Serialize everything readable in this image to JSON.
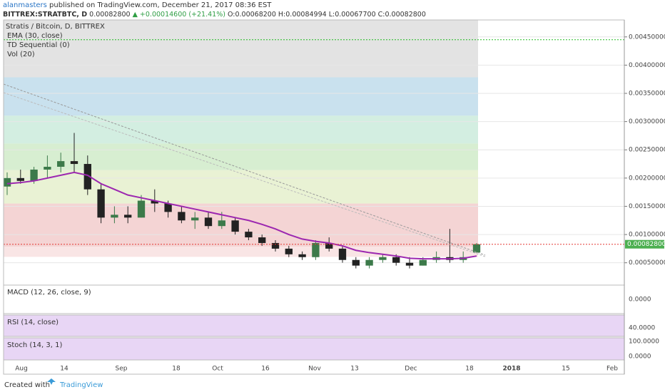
{
  "header": {
    "publisher": "alanmasters",
    "published": "published on TradingView.com, December 21, 2017 08:36 EST",
    "symbol": "BITTREX:STRATBTC, D",
    "price": "0.00082800",
    "change": "▲ +0.00014600 (+21.41%)",
    "ohlc": "O:0.00068200 H:0.00084994 L:0.00067700 C:0.00082800"
  },
  "legend": [
    "Stratis / Bitcoin, D, BITTREX",
    "EMA (30, close)",
    "TD Sequential (0)",
    "Vol (20)"
  ],
  "chart_data": {
    "type": "candlestick",
    "categories": [
      "Aug",
      "14",
      "Sep",
      "18",
      "Oct",
      "16",
      "Nov",
      "13",
      "Dec",
      "18",
      "2018",
      "15",
      "Feb"
    ],
    "open": [
      0.00185,
      0.002,
      0.00195,
      0.00215,
      0.0022,
      0.0023,
      0.00225,
      0.0018,
      0.0013,
      0.00135,
      0.0013,
      0.0016,
      0.00155,
      0.0014,
      0.00125,
      0.0013,
      0.00115,
      0.00125,
      0.00105,
      0.00095,
      0.00085,
      0.00075,
      0.00065,
      0.0006,
      0.00085,
      0.00075,
      0.00055,
      0.00045,
      0.00055,
      0.0006,
      0.0005,
      0.00045,
      0.00055,
      0.0006,
      0.00055,
      0.000682
    ],
    "high": [
      0.0021,
      0.00215,
      0.0022,
      0.0024,
      0.00245,
      0.0028,
      0.0024,
      0.0019,
      0.0015,
      0.0015,
      0.0017,
      0.0018,
      0.0016,
      0.0015,
      0.0014,
      0.0014,
      0.0014,
      0.0013,
      0.0011,
      0.001,
      0.0009,
      0.0008,
      0.0007,
      0.0009,
      0.00095,
      0.0008,
      0.0006,
      0.0006,
      0.00065,
      0.00065,
      0.0006,
      0.0006,
      0.0007,
      0.0011,
      0.0007,
      0.00084994
    ],
    "low": [
      0.0017,
      0.0019,
      0.0019,
      0.002,
      0.0021,
      0.0021,
      0.0017,
      0.0012,
      0.0012,
      0.0012,
      0.0013,
      0.0014,
      0.0013,
      0.0012,
      0.0011,
      0.0011,
      0.0011,
      0.001,
      0.0009,
      0.0008,
      0.0007,
      0.0006,
      0.00055,
      0.00055,
      0.0007,
      0.0005,
      0.0004,
      0.0004,
      0.0005,
      0.00045,
      0.0004,
      0.00045,
      0.0005,
      0.0005,
      0.0005,
      0.000677
    ],
    "close": [
      0.002,
      0.00195,
      0.00215,
      0.0022,
      0.0023,
      0.00225,
      0.0018,
      0.0013,
      0.00135,
      0.0013,
      0.0016,
      0.00155,
      0.0014,
      0.00125,
      0.0013,
      0.00115,
      0.00125,
      0.00105,
      0.00095,
      0.00085,
      0.00075,
      0.00065,
      0.0006,
      0.00085,
      0.00075,
      0.00055,
      0.00045,
      0.00055,
      0.0006,
      0.0005,
      0.00045,
      0.00055,
      0.0006,
      0.00055,
      0.0006,
      0.000828
    ],
    "up_color": "#3c7a4a",
    "down_color": "#222222",
    "ema": {
      "name": "EMA (30, close)",
      "color": "#9c27b0",
      "values": [
        0.0019,
        0.00192,
        0.00195,
        0.002,
        0.00205,
        0.0021,
        0.00205,
        0.0019,
        0.0018,
        0.0017,
        0.00165,
        0.0016,
        0.00155,
        0.0015,
        0.00145,
        0.0014,
        0.00135,
        0.0013,
        0.00125,
        0.00118,
        0.0011,
        0.001,
        0.00092,
        0.00088,
        0.00085,
        0.0008,
        0.00072,
        0.00068,
        0.00065,
        0.00062,
        0.00058,
        0.00057,
        0.00057,
        0.00057,
        0.00058,
        0.00062
      ]
    },
    "bands": [
      {
        "from": 0.003784,
        "to": 0.0048,
        "color": "#dcdcdc"
      },
      {
        "from": 0.003105,
        "to": 0.003784,
        "color": "#bcd9ea"
      },
      {
        "from": 0.002611,
        "to": 0.003105,
        "color": "#c8ead9"
      },
      {
        "from": 0.002142,
        "to": 0.002611,
        "color": "#cdeac6"
      },
      {
        "from": 0.001549,
        "to": 0.002142,
        "color": "#e3efc9"
      },
      {
        "from": 0.000784,
        "to": 0.001549,
        "color": "#f1c9c9"
      },
      {
        "from": 0.0006,
        "to": 0.000784,
        "color": "#f7dede"
      }
    ],
    "top_level": 0.00445,
    "last_price": {
      "value": 0.000828,
      "label": "0.00082800"
    },
    "ylim": [
      0.00013,
      0.0048
    ],
    "yticks": [
      {
        "value": 0.0005,
        "label": "0.00050000"
      },
      {
        "value": 0.001,
        "label": "0.00100000"
      },
      {
        "value": 0.0015,
        "label": "0.00150000"
      },
      {
        "value": 0.002,
        "label": "0.00200000"
      },
      {
        "value": 0.0025,
        "label": "0.00250000"
      },
      {
        "value": 0.003,
        "label": "0.00300000"
      },
      {
        "value": 0.0035,
        "label": "0.00350000"
      },
      {
        "value": 0.004,
        "label": "0.00400000"
      },
      {
        "value": 0.0045,
        "label": "0.00450000"
      }
    ]
  },
  "panes": [
    {
      "label": "MACD (12, 26, close, 9)",
      "ticks": [
        "0.0000"
      ]
    },
    {
      "label": "RSI (14, close)",
      "ticks": [
        "40.0000"
      ]
    },
    {
      "label": "Stoch (14, 3, 1)",
      "ticks": [
        "100.0000",
        "0.0000"
      ]
    }
  ],
  "footer": {
    "created": "Created with",
    "brand": "TradingView"
  }
}
